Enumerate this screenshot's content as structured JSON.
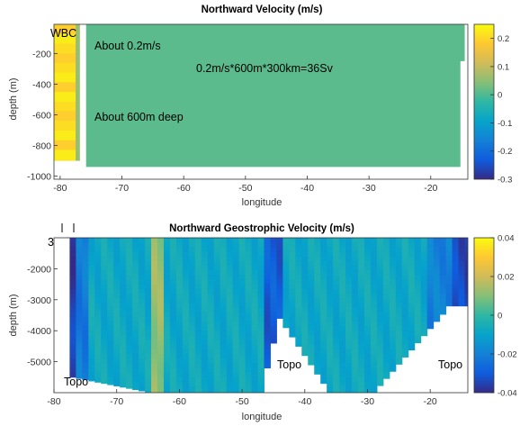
{
  "chart_data": [
    {
      "type": "heatmap",
      "title": "Northward Velocity (m/s)",
      "xlabel": "longitude",
      "ylabel": "depth (m)",
      "xlim": [
        -81,
        -14
      ],
      "ylim": [
        -1020,
        -10
      ],
      "xticks": [
        -80,
        -70,
        -60,
        -50,
        -40,
        -30,
        -20
      ],
      "yticks": [
        -200,
        -400,
        -600,
        -800,
        -1000
      ],
      "colorbar": {
        "range": [
          -0.3,
          0.25
        ],
        "ticks": [
          0.2,
          0.1,
          0,
          -0.1,
          -0.2,
          -0.3
        ]
      },
      "background_value": 0.0,
      "regions": [
        {
          "x": [
            -81,
            -77.5
          ],
          "y": [
            -10,
            -900
          ],
          "value": 0.22
        },
        {
          "x": [
            -77.5,
            -76.8
          ],
          "y": [
            -10,
            -900
          ],
          "value": 0.06
        },
        {
          "x": [
            -75.8,
            -14.5
          ],
          "y": [
            -10,
            -940
          ],
          "value": 0.01
        }
      ],
      "annotations": [
        {
          "text": "WBC",
          "x": -79.5,
          "y": -45
        },
        {
          "text": "About 0.2m/s",
          "x": -74.8,
          "y": -130
        },
        {
          "text": "0.2m/s*600m*300km=36Sv",
          "x": -55.5,
          "y": -290
        },
        {
          "text": "About 600m deep",
          "x": -74.8,
          "y": -620
        }
      ],
      "scale_label": "300km"
    },
    {
      "type": "heatmap",
      "title": "Northward Geostrophic Velocity (m/s)",
      "xlabel": "longitude",
      "ylabel": "depth (m)",
      "xlim": [
        -80,
        -14
      ],
      "ylim": [
        -6000,
        -1000
      ],
      "xticks": [
        -80,
        -70,
        -60,
        -50,
        -40,
        -30,
        -20
      ],
      "yticks": [
        -2000,
        -3000,
        -4000,
        -5000
      ],
      "colorbar": {
        "range": [
          -0.04,
          0.04
        ],
        "ticks": [
          0.04,
          0.02,
          0,
          -0.02,
          -0.04
        ]
      },
      "annotations": [
        {
          "text": "Topo",
          "x": -78.5,
          "y": -5750
        },
        {
          "text": "Topo",
          "x": -45.5,
          "y": -5250
        },
        {
          "text": "Topo",
          "x": -20.5,
          "y": -5250
        }
      ]
    }
  ]
}
